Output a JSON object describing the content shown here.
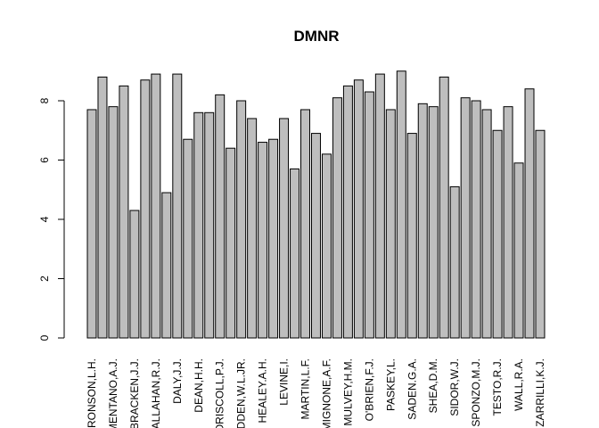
{
  "chart_data": {
    "type": "bar",
    "title": "DMNR",
    "categories": [
      "AARONSON,L.H.",
      null,
      "ARMENTANO,A.J.",
      null,
      "BRACKEN,J.J.",
      null,
      "CALLAHAN,R.J.",
      null,
      "DALY,J.J.",
      null,
      "DEAN,H.H.",
      null,
      "DRISCOLL,P.J.",
      null,
      "HADDEN,W.L.JR.",
      null,
      "HEALEY.A.H.",
      null,
      "LEVINE,I.",
      null,
      "MARTIN,L.F.",
      null,
      "MIGNONE,A.F.",
      null,
      "MULVEY,H.M.",
      null,
      "O'BRIEN,F.J.",
      null,
      "PASKEY,L.",
      null,
      "SADEN.G.A.",
      null,
      "SHEA,D.M.",
      null,
      "SIDOR,W.J.",
      null,
      "SPONZO,M.J.",
      null,
      "TESTO,R.J.",
      null,
      "WALL,R.A.",
      null,
      "ZARRILLI,K.J."
    ],
    "values": [
      7.7,
      8.8,
      7.8,
      8.5,
      4.3,
      8.7,
      8.9,
      4.9,
      8.9,
      6.7,
      7.6,
      7.6,
      8.2,
      6.4,
      8.0,
      7.4,
      6.6,
      6.7,
      7.4,
      5.7,
      7.7,
      6.9,
      6.2,
      8.1,
      8.5,
      8.7,
      8.3,
      8.9,
      7.7,
      9.0,
      6.9,
      7.9,
      7.8,
      8.8,
      5.1,
      8.1,
      8.0,
      7.7,
      7.0,
      7.8,
      5.9,
      8.4,
      7.0
    ],
    "color": "#bebebe",
    "ylim": [
      0,
      9
    ],
    "yticks": [
      0,
      2,
      4,
      6,
      8
    ]
  }
}
